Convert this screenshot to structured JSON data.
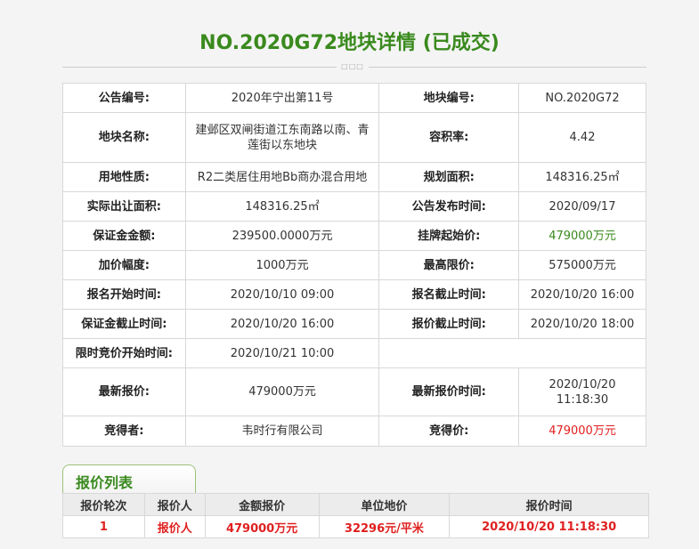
{
  "title": "NO.2020G72地块详情 (已成交)",
  "divider_glyph": "□□□",
  "details": [
    [
      {
        "l": "公告编号:",
        "v": "2020年宁出第11号"
      },
      {
        "l": "地块编号:",
        "v": "NO.2020G72"
      }
    ],
    [
      {
        "l": "地块名称:",
        "v": "建邺区双闸街道江东南路以南、青莲街以东地块"
      },
      {
        "l": "容积率:",
        "v": "4.42"
      }
    ],
    [
      {
        "l": "用地性质:",
        "v": "R2二类居住用地Bb商办混合用地"
      },
      {
        "l": "规划面积:",
        "v": "148316.25㎡"
      }
    ],
    [
      {
        "l": "实际出让面积:",
        "v": "148316.25㎡"
      },
      {
        "l": "公告发布时间:",
        "v": "2020/09/17"
      }
    ],
    [
      {
        "l": "保证金金额:",
        "v": "239500.0000万元"
      },
      {
        "l": "挂牌起始价:",
        "v": "479000万元",
        "c": "green"
      }
    ],
    [
      {
        "l": "加价幅度:",
        "v": "1000万元"
      },
      {
        "l": "最高限价:",
        "v": "575000万元"
      }
    ],
    [
      {
        "l": "报名开始时间:",
        "v": "2020/10/10 09:00"
      },
      {
        "l": "报名截止时间:",
        "v": "2020/10/20 16:00"
      }
    ],
    [
      {
        "l": "保证金截止时间:",
        "v": "2020/10/20 16:00"
      },
      {
        "l": "报价截止时间:",
        "v": "2020/10/20 18:00"
      }
    ],
    [
      {
        "l": "限时竞价开始时间:",
        "v": "2020/10/21 10:00"
      }
    ],
    [
      {
        "l": "最新报价:",
        "v": "479000万元"
      },
      {
        "l": "最新报价时间:",
        "v": "2020/10/20 11:18:30"
      }
    ],
    [
      {
        "l": "竞得者:",
        "v": "韦时行有限公司"
      },
      {
        "l": "竞得价:",
        "v": "479000万元",
        "c": "red"
      }
    ]
  ],
  "bids": {
    "tab_label": "报价列表",
    "headers": [
      "报价轮次",
      "报价人",
      "金额报价",
      "单位地价",
      "报价时间"
    ],
    "rows": [
      [
        "1",
        "报价人",
        "479000万元",
        "32296元/平米",
        "2020/10/20 11:18:30"
      ]
    ]
  }
}
